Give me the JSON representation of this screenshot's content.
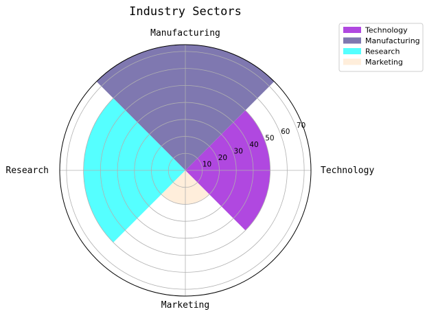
{
  "chart_data": {
    "type": "polar-bar",
    "title": "Industry Sectors",
    "categories": [
      "Technology",
      "Manufacturing",
      "Research",
      "Marketing"
    ],
    "values": [
      50,
      80,
      60,
      20
    ],
    "colors": [
      "#b048e0",
      "#7f78b0",
      "#55ffff",
      "#ffeedb"
    ],
    "radial_ticks": [
      10,
      20,
      30,
      40,
      50,
      60,
      70
    ],
    "rlim": [
      0,
      74
    ],
    "grid": true,
    "legend": "top-right",
    "legend_entries": [
      "Technology",
      "Manufacturing",
      "Research",
      "Marketing"
    ]
  }
}
